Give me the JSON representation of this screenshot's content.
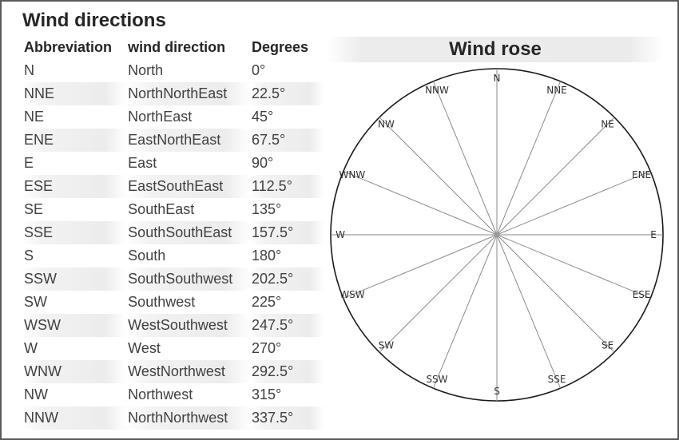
{
  "title": "Wind directions",
  "table": {
    "headers": [
      "Abbreviation",
      "wind direction",
      "Degrees"
    ],
    "rows": [
      {
        "abbr": "N",
        "name": "North",
        "deg": "0°"
      },
      {
        "abbr": "NNE",
        "name": "NorthNorthEast",
        "deg": "22.5°"
      },
      {
        "abbr": "NE",
        "name": "NorthEast",
        "deg": "45°"
      },
      {
        "abbr": "ENE",
        "name": "EastNorthEast",
        "deg": "67.5°"
      },
      {
        "abbr": "E",
        "name": "East",
        "deg": "90°"
      },
      {
        "abbr": "ESE",
        "name": "EastSouthEast",
        "deg": "112.5°"
      },
      {
        "abbr": "SE",
        "name": "SouthEast",
        "deg": "135°"
      },
      {
        "abbr": "SSE",
        "name": "SouthSouthEast",
        "deg": "157.5°"
      },
      {
        "abbr": "S",
        "name": "South",
        "deg": "180°"
      },
      {
        "abbr": "SSW",
        "name": "SouthSouthwest",
        "deg": "202.5°"
      },
      {
        "abbr": "SW",
        "name": "Southwest",
        "deg": "225°"
      },
      {
        "abbr": "WSW",
        "name": "WestSouthwest",
        "deg": "247.5°"
      },
      {
        "abbr": "W",
        "name": "West",
        "deg": "270°"
      },
      {
        "abbr": "WNW",
        "name": "WestNorthwest",
        "deg": "292.5°"
      },
      {
        "abbr": "NW",
        "name": "Northwest",
        "deg": "315°"
      },
      {
        "abbr": "NNW",
        "name": "NorthNorthwest",
        "deg": "337.5°"
      }
    ]
  },
  "rose": {
    "title": "Wind rose",
    "points": [
      {
        "label": "N",
        "degrees": 0
      },
      {
        "label": "NNE",
        "degrees": 22.5
      },
      {
        "label": "NE",
        "degrees": 45
      },
      {
        "label": "ENE",
        "degrees": 67.5
      },
      {
        "label": "E",
        "degrees": 90
      },
      {
        "label": "ESE",
        "degrees": 112.5
      },
      {
        "label": "SE",
        "degrees": 135
      },
      {
        "label": "SSE",
        "degrees": 157.5
      },
      {
        "label": "S",
        "degrees": 180
      },
      {
        "label": "SSW",
        "degrees": 202.5
      },
      {
        "label": "SW",
        "degrees": 225
      },
      {
        "label": "WSW",
        "degrees": 247.5
      },
      {
        "label": "W",
        "degrees": 270
      },
      {
        "label": "WNW",
        "degrees": 292.5
      },
      {
        "label": "NW",
        "degrees": 315
      },
      {
        "label": "NNW",
        "degrees": 337.5
      }
    ]
  }
}
